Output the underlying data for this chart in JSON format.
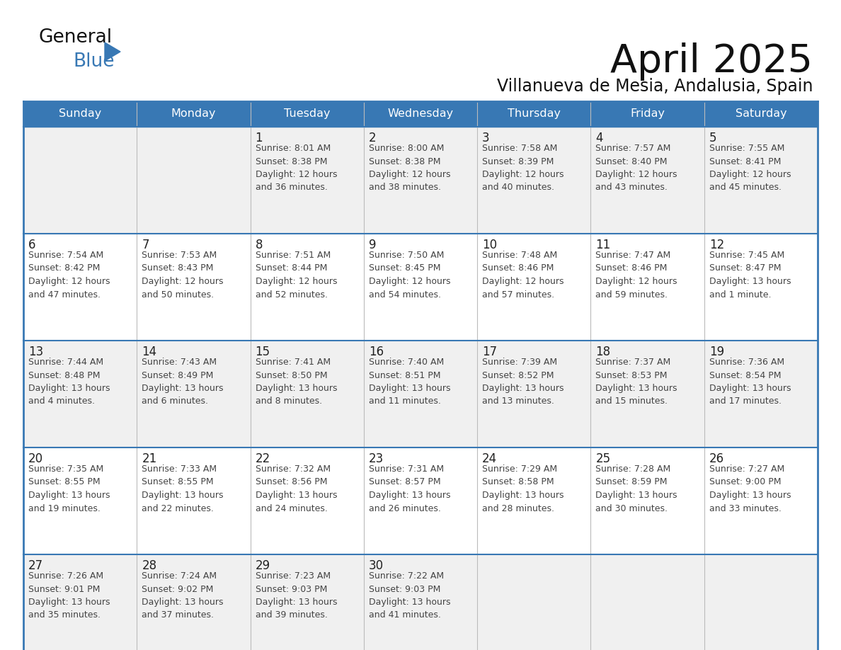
{
  "title": "April 2025",
  "subtitle": "Villanueva de Mesia, Andalusia, Spain",
  "header_bg_color": "#3878b4",
  "header_text_color": "#ffffff",
  "row_bg_colors": [
    "#f0f0f0",
    "#ffffff"
  ],
  "divider_color": "#3878b4",
  "text_color": "#222222",
  "day_number_color": "#222222",
  "info_text_color": "#444444",
  "days_of_week": [
    "Sunday",
    "Monday",
    "Tuesday",
    "Wednesday",
    "Thursday",
    "Friday",
    "Saturday"
  ],
  "weeks": [
    [
      {
        "day": "",
        "info": ""
      },
      {
        "day": "",
        "info": ""
      },
      {
        "day": "1",
        "info": "Sunrise: 8:01 AM\nSunset: 8:38 PM\nDaylight: 12 hours\nand 36 minutes."
      },
      {
        "day": "2",
        "info": "Sunrise: 8:00 AM\nSunset: 8:38 PM\nDaylight: 12 hours\nand 38 minutes."
      },
      {
        "day": "3",
        "info": "Sunrise: 7:58 AM\nSunset: 8:39 PM\nDaylight: 12 hours\nand 40 minutes."
      },
      {
        "day": "4",
        "info": "Sunrise: 7:57 AM\nSunset: 8:40 PM\nDaylight: 12 hours\nand 43 minutes."
      },
      {
        "day": "5",
        "info": "Sunrise: 7:55 AM\nSunset: 8:41 PM\nDaylight: 12 hours\nand 45 minutes."
      }
    ],
    [
      {
        "day": "6",
        "info": "Sunrise: 7:54 AM\nSunset: 8:42 PM\nDaylight: 12 hours\nand 47 minutes."
      },
      {
        "day": "7",
        "info": "Sunrise: 7:53 AM\nSunset: 8:43 PM\nDaylight: 12 hours\nand 50 minutes."
      },
      {
        "day": "8",
        "info": "Sunrise: 7:51 AM\nSunset: 8:44 PM\nDaylight: 12 hours\nand 52 minutes."
      },
      {
        "day": "9",
        "info": "Sunrise: 7:50 AM\nSunset: 8:45 PM\nDaylight: 12 hours\nand 54 minutes."
      },
      {
        "day": "10",
        "info": "Sunrise: 7:48 AM\nSunset: 8:46 PM\nDaylight: 12 hours\nand 57 minutes."
      },
      {
        "day": "11",
        "info": "Sunrise: 7:47 AM\nSunset: 8:46 PM\nDaylight: 12 hours\nand 59 minutes."
      },
      {
        "day": "12",
        "info": "Sunrise: 7:45 AM\nSunset: 8:47 PM\nDaylight: 13 hours\nand 1 minute."
      }
    ],
    [
      {
        "day": "13",
        "info": "Sunrise: 7:44 AM\nSunset: 8:48 PM\nDaylight: 13 hours\nand 4 minutes."
      },
      {
        "day": "14",
        "info": "Sunrise: 7:43 AM\nSunset: 8:49 PM\nDaylight: 13 hours\nand 6 minutes."
      },
      {
        "day": "15",
        "info": "Sunrise: 7:41 AM\nSunset: 8:50 PM\nDaylight: 13 hours\nand 8 minutes."
      },
      {
        "day": "16",
        "info": "Sunrise: 7:40 AM\nSunset: 8:51 PM\nDaylight: 13 hours\nand 11 minutes."
      },
      {
        "day": "17",
        "info": "Sunrise: 7:39 AM\nSunset: 8:52 PM\nDaylight: 13 hours\nand 13 minutes."
      },
      {
        "day": "18",
        "info": "Sunrise: 7:37 AM\nSunset: 8:53 PM\nDaylight: 13 hours\nand 15 minutes."
      },
      {
        "day": "19",
        "info": "Sunrise: 7:36 AM\nSunset: 8:54 PM\nDaylight: 13 hours\nand 17 minutes."
      }
    ],
    [
      {
        "day": "20",
        "info": "Sunrise: 7:35 AM\nSunset: 8:55 PM\nDaylight: 13 hours\nand 19 minutes."
      },
      {
        "day": "21",
        "info": "Sunrise: 7:33 AM\nSunset: 8:55 PM\nDaylight: 13 hours\nand 22 minutes."
      },
      {
        "day": "22",
        "info": "Sunrise: 7:32 AM\nSunset: 8:56 PM\nDaylight: 13 hours\nand 24 minutes."
      },
      {
        "day": "23",
        "info": "Sunrise: 7:31 AM\nSunset: 8:57 PM\nDaylight: 13 hours\nand 26 minutes."
      },
      {
        "day": "24",
        "info": "Sunrise: 7:29 AM\nSunset: 8:58 PM\nDaylight: 13 hours\nand 28 minutes."
      },
      {
        "day": "25",
        "info": "Sunrise: 7:28 AM\nSunset: 8:59 PM\nDaylight: 13 hours\nand 30 minutes."
      },
      {
        "day": "26",
        "info": "Sunrise: 7:27 AM\nSunset: 9:00 PM\nDaylight: 13 hours\nand 33 minutes."
      }
    ],
    [
      {
        "day": "27",
        "info": "Sunrise: 7:26 AM\nSunset: 9:01 PM\nDaylight: 13 hours\nand 35 minutes."
      },
      {
        "day": "28",
        "info": "Sunrise: 7:24 AM\nSunset: 9:02 PM\nDaylight: 13 hours\nand 37 minutes."
      },
      {
        "day": "29",
        "info": "Sunrise: 7:23 AM\nSunset: 9:03 PM\nDaylight: 13 hours\nand 39 minutes."
      },
      {
        "day": "30",
        "info": "Sunrise: 7:22 AM\nSunset: 9:03 PM\nDaylight: 13 hours\nand 41 minutes."
      },
      {
        "day": "",
        "info": ""
      },
      {
        "day": "",
        "info": ""
      },
      {
        "day": "",
        "info": ""
      }
    ]
  ]
}
